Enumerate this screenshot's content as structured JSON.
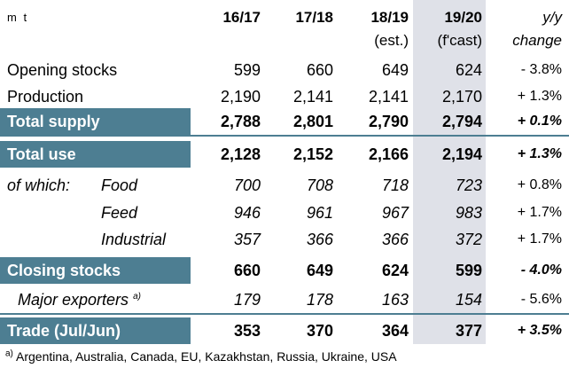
{
  "header": {
    "unit": "m t",
    "cols": [
      "16/17",
      "17/18",
      "18/19",
      "19/20",
      "y/y"
    ],
    "sub": [
      "(est.)",
      "(f'cast)",
      "change"
    ]
  },
  "rows": {
    "opening": {
      "label": "Opening stocks",
      "v": [
        "599",
        "660",
        "649",
        "624"
      ],
      "chg": "- 3.8%"
    },
    "production": {
      "label": "Production",
      "v": [
        "2,190",
        "2,141",
        "2,141",
        "2,170"
      ],
      "chg": "+ 1.3%"
    },
    "total_supply": {
      "label": "Total supply",
      "v": [
        "2,788",
        "2,801",
        "2,790",
        "2,794"
      ],
      "chg": "+ 0.1%"
    },
    "total_use": {
      "label": "Total use",
      "v": [
        "2,128",
        "2,152",
        "2,166",
        "2,194"
      ],
      "chg": "+ 1.3%"
    },
    "food": {
      "prefix": "of which:",
      "label": "Food",
      "v": [
        "700",
        "708",
        "718",
        "723"
      ],
      "chg": "+ 0.8%"
    },
    "feed": {
      "label": "Feed",
      "v": [
        "946",
        "961",
        "967",
        "983"
      ],
      "chg": "+ 1.7%"
    },
    "industrial": {
      "label": "Industrial",
      "v": [
        "357",
        "366",
        "366",
        "372"
      ],
      "chg": "+ 1.7%"
    },
    "closing": {
      "label": "Closing stocks",
      "v": [
        "660",
        "649",
        "624",
        "599"
      ],
      "chg": "- 4.0%"
    },
    "major": {
      "label": "Major exporters",
      "mark": "a)",
      "v": [
        "179",
        "178",
        "163",
        "154"
      ],
      "chg": "- 5.6%"
    },
    "trade": {
      "label": "Trade (Jul/Jun)",
      "v": [
        "353",
        "370",
        "364",
        "377"
      ],
      "chg": "+ 3.5%"
    }
  },
  "footnote": {
    "mark": "a)",
    "text": " Argentina, Australia, Canada, EU, Kazakhstan, Russia, Ukraine, USA"
  }
}
